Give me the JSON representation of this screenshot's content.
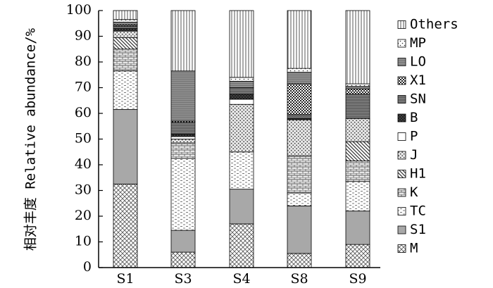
{
  "chart_data": {
    "type": "bar",
    "stacked": true,
    "ylabel": "相对丰度 Relative abundance/%",
    "xlabel": "",
    "ylim": [
      0,
      100
    ],
    "yticks": [
      0,
      10,
      20,
      30,
      40,
      50,
      60,
      70,
      80,
      90,
      100
    ],
    "grid": false,
    "legend_position": "right",
    "categories": [
      "S1",
      "S3",
      "S4",
      "S8",
      "S9"
    ],
    "series": [
      {
        "name": "M",
        "pattern": "crosshatch",
        "values": [
          32.5,
          6.0,
          17.0,
          5.5,
          9.0
        ]
      },
      {
        "name": "S1",
        "pattern": "gray",
        "values": [
          29.0,
          8.5,
          13.5,
          18.5,
          13.0
        ]
      },
      {
        "name": "TC",
        "pattern": "dash",
        "values": [
          15.0,
          28.0,
          14.5,
          5.0,
          11.5
        ]
      },
      {
        "name": "K",
        "pattern": "brick",
        "values": [
          8.5,
          6.0,
          0.0,
          14.5,
          8.0
        ]
      },
      {
        "name": "H1",
        "pattern": "diagonal",
        "values": [
          4.5,
          0.0,
          0.0,
          0.0,
          7.5
        ]
      },
      {
        "name": "J",
        "pattern": "dots",
        "values": [
          2.5,
          1.5,
          18.5,
          14.0,
          9.0
        ]
      },
      {
        "name": "P",
        "pattern": "white",
        "values": [
          0.0,
          1.0,
          2.0,
          0.0,
          0.0
        ]
      },
      {
        "name": "B",
        "pattern": "dark",
        "values": [
          1.0,
          1.0,
          2.0,
          0.5,
          0.0
        ]
      },
      {
        "name": "SN",
        "pattern": "stripes",
        "values": [
          1.0,
          4.5,
          2.5,
          1.5,
          9.5
        ]
      },
      {
        "name": "X1",
        "pattern": "checker",
        "values": [
          0.5,
          0.5,
          0.0,
          12.0,
          2.0
        ]
      },
      {
        "name": "LO",
        "pattern": "gray-stripe",
        "values": [
          1.0,
          19.5,
          2.5,
          4.5,
          1.0
        ]
      },
      {
        "name": "MP",
        "pattern": "sparse-dots",
        "values": [
          1.0,
          0.0,
          1.5,
          1.5,
          1.0
        ]
      },
      {
        "name": "Others",
        "pattern": "vertical",
        "values": [
          3.5,
          23.5,
          26.0,
          22.5,
          28.5
        ]
      }
    ]
  }
}
